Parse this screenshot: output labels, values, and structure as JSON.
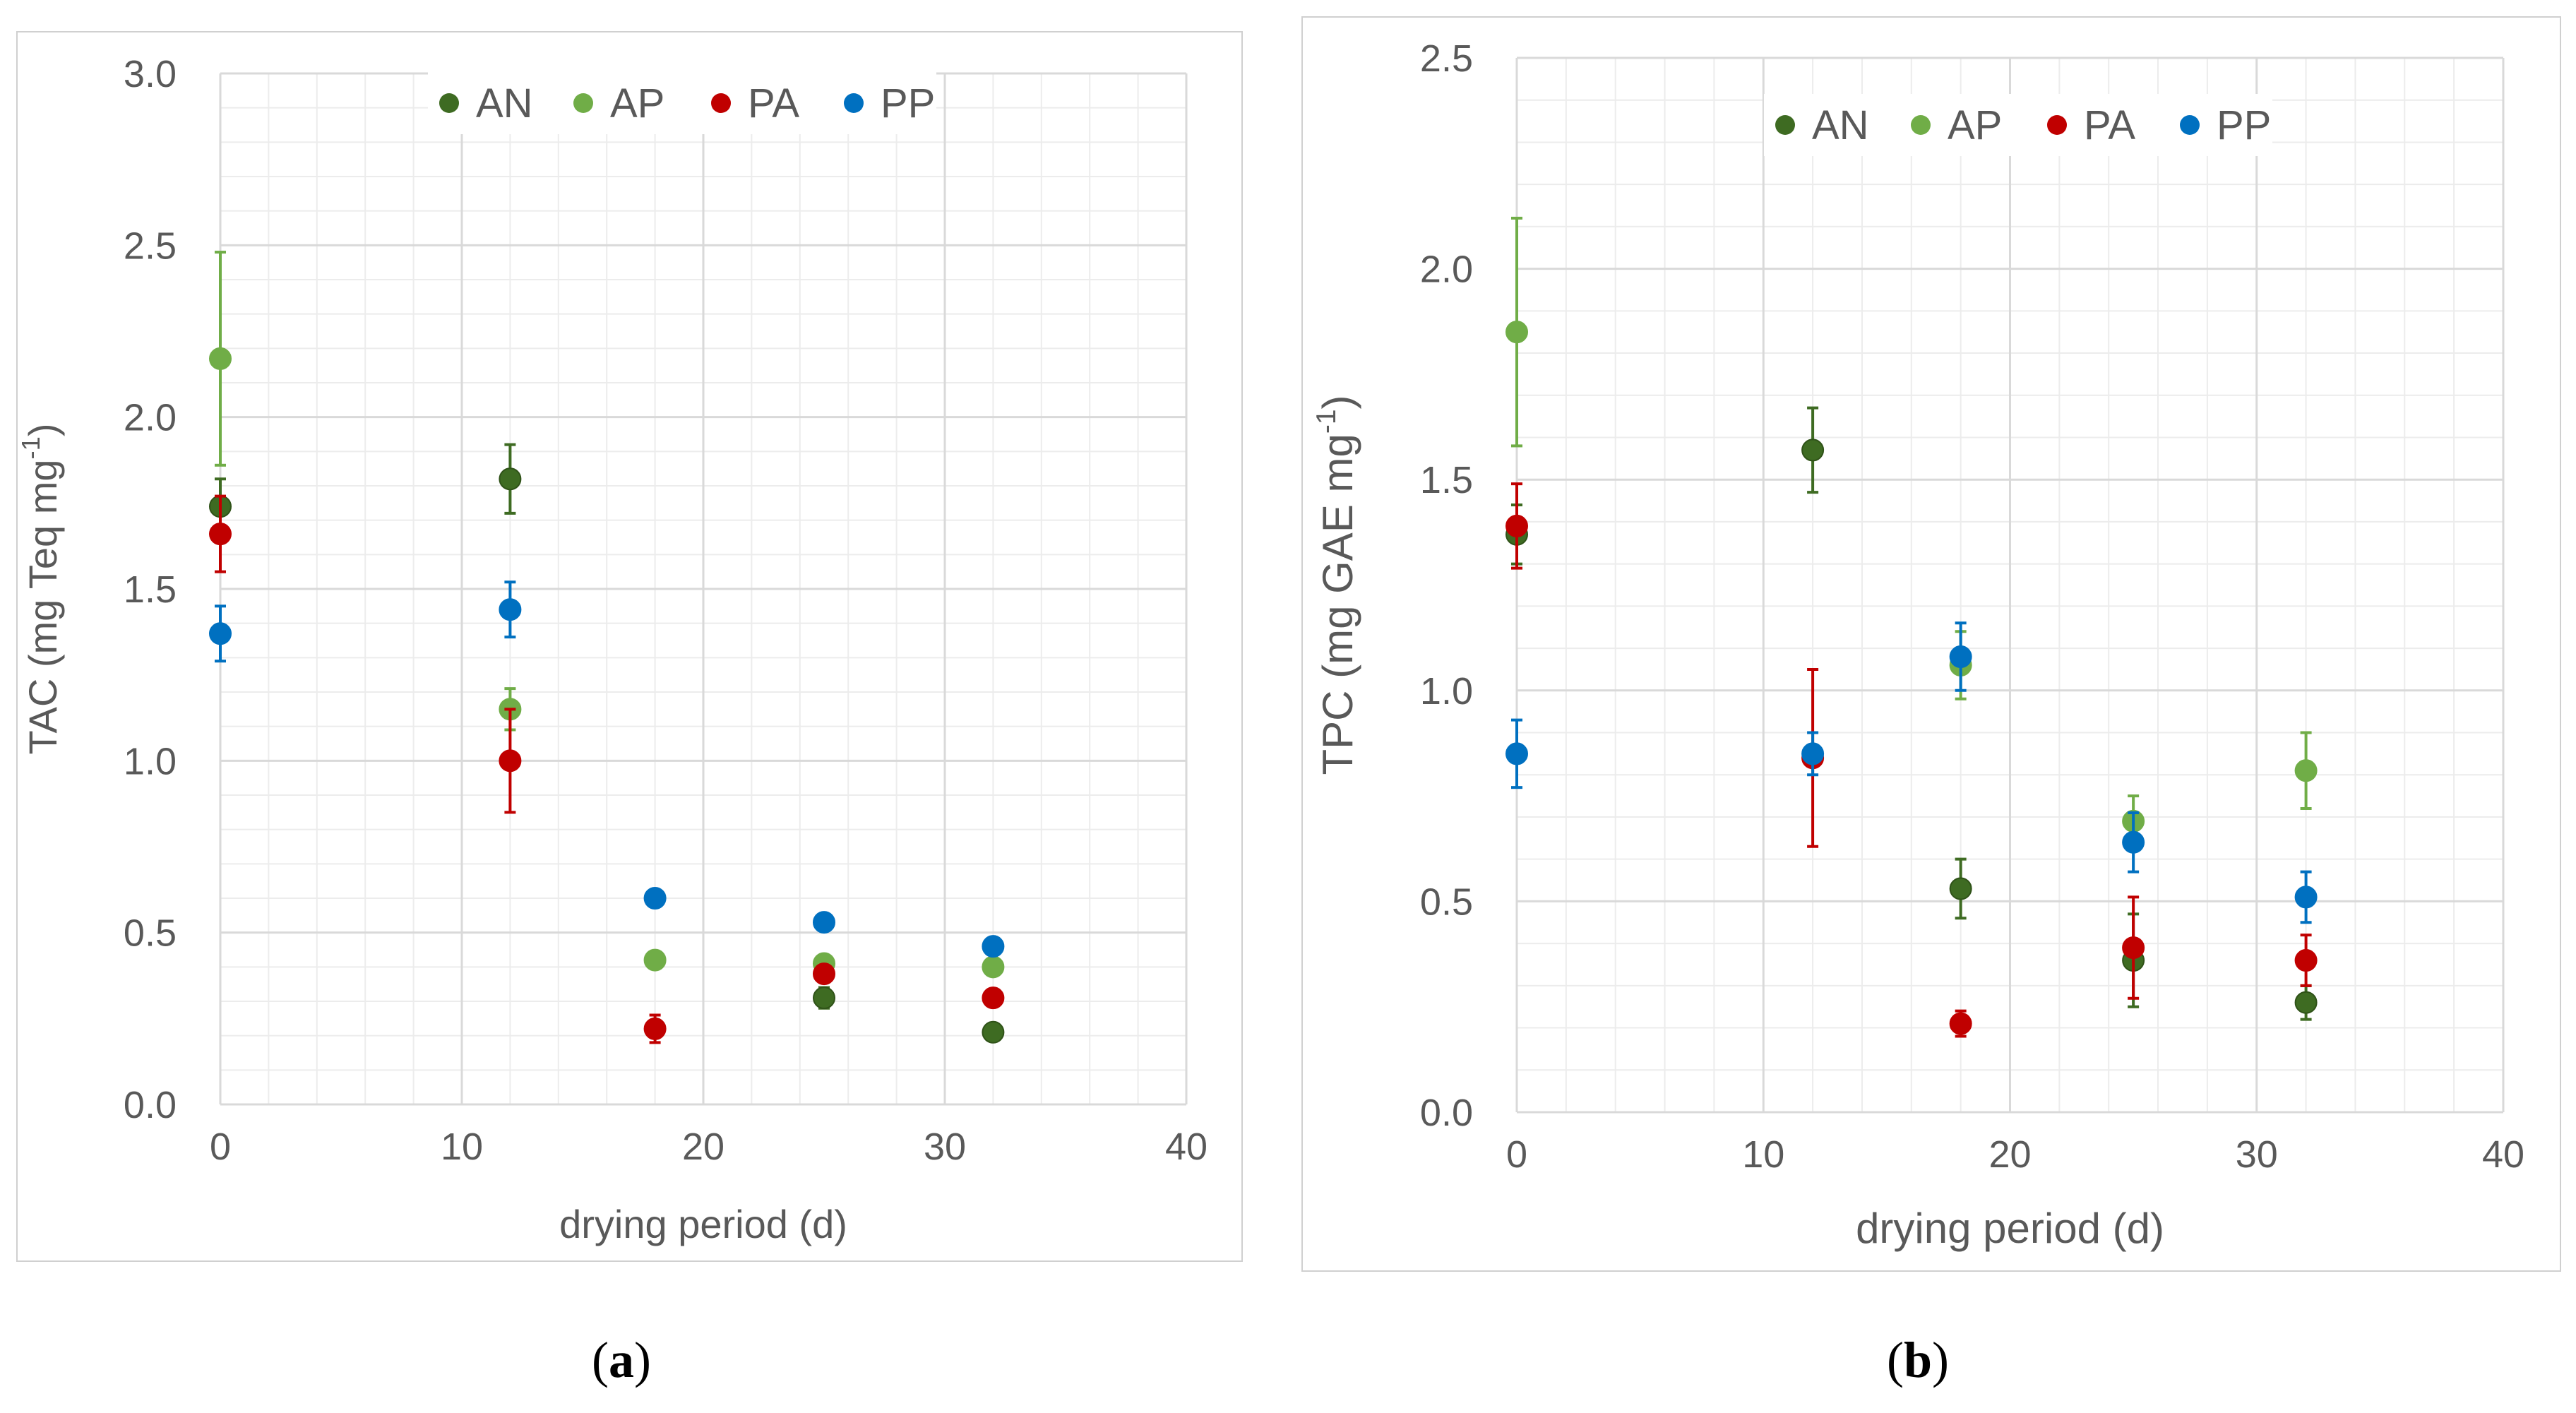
{
  "colors": {
    "AN": "#3e6b22",
    "AP": "#70ad47",
    "PA": "#c00000",
    "PP": "#0070c0",
    "grid_major": "#d9d9d9",
    "grid_minor": "#ececec",
    "text": "#595959"
  },
  "captions": {
    "a": "a",
    "b": "b"
  },
  "chart_data": [
    {
      "id": "a",
      "type": "scatter",
      "ylabel_main": "TAC (mg Teq mg",
      "ylabel_sup": "-1",
      "ylabel_close": ")",
      "xlabel": "drying period (d)",
      "xlim": [
        0,
        40
      ],
      "ylim": [
        0,
        3.0
      ],
      "xticks": [
        0,
        10,
        20,
        30,
        40
      ],
      "xtick_labels": [
        "0",
        "10",
        "20",
        "30",
        "40"
      ],
      "yticks": [
        0,
        0.5,
        1.0,
        1.5,
        2.0,
        2.5,
        3.0
      ],
      "ytick_labels": [
        "0.0",
        "0.5",
        "1.0",
        "1.5",
        "2.0",
        "2.5",
        "3.0"
      ],
      "grid": true,
      "legend": "top",
      "series": [
        {
          "name": "AN",
          "points": [
            {
              "x": 0,
              "y": 1.74,
              "err": 0.08
            },
            {
              "x": 12,
              "y": 1.82,
              "err": 0.1
            },
            {
              "x": 25,
              "y": 0.31,
              "err": 0.03
            },
            {
              "x": 32,
              "y": 0.21,
              "err": 0.01
            }
          ]
        },
        {
          "name": "AP",
          "points": [
            {
              "x": 0,
              "y": 2.17,
              "err": 0.31
            },
            {
              "x": 12,
              "y": 1.15,
              "err": 0.06
            },
            {
              "x": 18,
              "y": 0.42,
              "err": 0.02
            },
            {
              "x": 25,
              "y": 0.41,
              "err": 0.02
            },
            {
              "x": 32,
              "y": 0.4,
              "err": 0.02
            }
          ]
        },
        {
          "name": "PA",
          "points": [
            {
              "x": 0,
              "y": 1.66,
              "err": 0.11
            },
            {
              "x": 12,
              "y": 1.0,
              "err": 0.15
            },
            {
              "x": 18,
              "y": 0.22,
              "err": 0.04
            },
            {
              "x": 25,
              "y": 0.38,
              "err": 0.02
            },
            {
              "x": 32,
              "y": 0.31,
              "err": 0.01
            }
          ]
        },
        {
          "name": "PP",
          "points": [
            {
              "x": 0,
              "y": 1.37,
              "err": 0.08
            },
            {
              "x": 12,
              "y": 1.44,
              "err": 0.08
            },
            {
              "x": 18,
              "y": 0.6,
              "err": 0.01
            },
            {
              "x": 25,
              "y": 0.53,
              "err": 0.01
            },
            {
              "x": 32,
              "y": 0.46,
              "err": 0.01
            }
          ]
        }
      ]
    },
    {
      "id": "b",
      "type": "scatter",
      "ylabel_main": "TPC (mg GAE mg",
      "ylabel_sup": "-1",
      "ylabel_close": ")",
      "xlabel": "drying period (d)",
      "xlim": [
        0,
        40
      ],
      "ylim": [
        0,
        2.5
      ],
      "xticks": [
        0,
        10,
        20,
        30,
        40
      ],
      "xtick_labels": [
        "0",
        "10",
        "20",
        "30",
        "40"
      ],
      "yticks": [
        0,
        0.5,
        1.0,
        1.5,
        2.0,
        2.5
      ],
      "ytick_labels": [
        "0.0",
        "0.5",
        "1.0",
        "1.5",
        "2.0",
        "2.5"
      ],
      "grid": true,
      "legend": "top",
      "series": [
        {
          "name": "AN",
          "points": [
            {
              "x": 0,
              "y": 1.37,
              "err": 0.07
            },
            {
              "x": 12,
              "y": 1.57,
              "err": 0.1
            },
            {
              "x": 18,
              "y": 0.53,
              "err": 0.07
            },
            {
              "x": 25,
              "y": 0.36,
              "err": 0.11
            },
            {
              "x": 32,
              "y": 0.26,
              "err": 0.04
            }
          ]
        },
        {
          "name": "AP",
          "points": [
            {
              "x": 0,
              "y": 1.85,
              "err": 0.27
            },
            {
              "x": 18,
              "y": 1.06,
              "err": 0.08
            },
            {
              "x": 25,
              "y": 0.69,
              "err": 0.06
            },
            {
              "x": 32,
              "y": 0.81,
              "err": 0.09
            }
          ]
        },
        {
          "name": "PA",
          "points": [
            {
              "x": 0,
              "y": 1.39,
              "err": 0.1
            },
            {
              "x": 12,
              "y": 0.84,
              "err": 0.21
            },
            {
              "x": 18,
              "y": 0.21,
              "err": 0.03
            },
            {
              "x": 25,
              "y": 0.39,
              "err": 0.12
            },
            {
              "x": 32,
              "y": 0.36,
              "err": 0.06
            }
          ]
        },
        {
          "name": "PP",
          "points": [
            {
              "x": 0,
              "y": 0.85,
              "err": 0.08
            },
            {
              "x": 12,
              "y": 0.85,
              "err": 0.05
            },
            {
              "x": 18,
              "y": 1.08,
              "err": 0.08
            },
            {
              "x": 25,
              "y": 0.64,
              "err": 0.07
            },
            {
              "x": 32,
              "y": 0.51,
              "err": 0.06
            }
          ]
        }
      ]
    }
  ]
}
